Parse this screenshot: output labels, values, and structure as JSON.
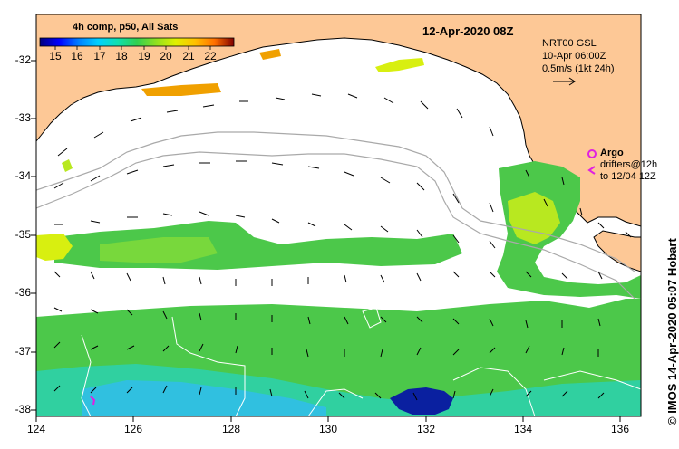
{
  "title": "12-Apr-2020 08Z",
  "colorbar": {
    "label": "4h comp, p50, All Sats",
    "ticks": [
      "15",
      "16",
      "17",
      "18",
      "19",
      "20",
      "21",
      "22"
    ],
    "colors": [
      "#00007f",
      "#0000ff",
      "#007fff",
      "#00d0ff",
      "#10e0b0",
      "#30d050",
      "#90e020",
      "#e0f000",
      "#ffc000",
      "#ff7000",
      "#d02000",
      "#800000"
    ]
  },
  "altimetry": {
    "line1": "NRT00 GSL",
    "line2": "10-Apr 06:00Z",
    "line3": "0.5m/s (1kt 24h)"
  },
  "argo_legend": {
    "argo": "Argo",
    "drifters_line1": "drifters@12h",
    "drifters_line2": "to 12/04 12Z"
  },
  "credit": "© IMOS 14-Apr-2020 05:07 Hobart",
  "axes": {
    "lat_ticks": [
      "-32",
      "-33",
      "-34",
      "-35",
      "-36",
      "-37",
      "-38"
    ],
    "lon_ticks": [
      "124",
      "126",
      "128",
      "130",
      "132",
      "134",
      "136"
    ]
  },
  "colors": {
    "land": "#fdc896",
    "sst_green": "#4cc84a",
    "sst_lightgreen": "#78d83c",
    "sst_yellow": "#d8ef10",
    "sst_orange": "#f0a000",
    "sst_cyan": "#30d0c0",
    "sst_blue": "#0a20a0",
    "argo": "#e020e0"
  }
}
